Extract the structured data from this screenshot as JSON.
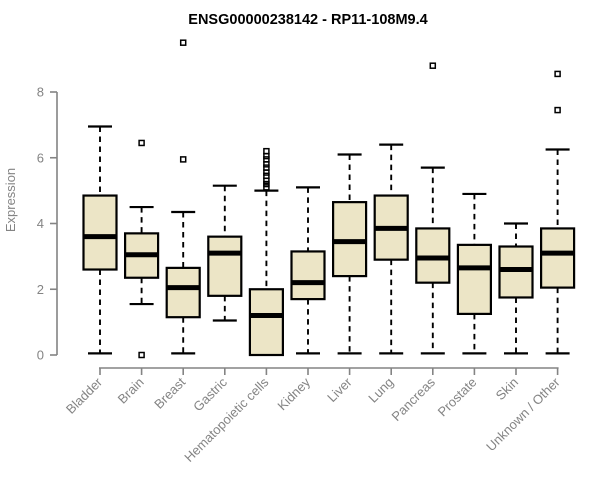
{
  "chart_data": {
    "type": "boxplot",
    "title": "ENSG00000238142 - RP11-108M9.4",
    "xlabel": "",
    "ylabel": "Expression",
    "ylim": [
      0,
      8
    ],
    "yticks": [
      0,
      2,
      4,
      6,
      8
    ],
    "grid": false,
    "legend": "none",
    "categories": [
      "Bladder",
      "Brain",
      "Breast",
      "Gastric",
      "Hematopoietic cells",
      "Kidney",
      "Liver",
      "Lung",
      "Pancreas",
      "Prostate",
      "Skin",
      "Unknown / Other"
    ],
    "series": [
      {
        "name": "Bladder",
        "low": 0.05,
        "q1": 2.6,
        "median": 3.6,
        "q3": 4.85,
        "high": 6.95,
        "outliers": []
      },
      {
        "name": "Brain",
        "low": 1.55,
        "q1": 2.35,
        "median": 3.05,
        "q3": 3.7,
        "high": 4.5,
        "outliers": [
          6.45,
          0.0
        ]
      },
      {
        "name": "Breast",
        "low": 0.05,
        "q1": 1.15,
        "median": 2.05,
        "q3": 2.65,
        "high": 4.35,
        "outliers": [
          9.5,
          5.95
        ]
      },
      {
        "name": "Gastric",
        "low": 1.05,
        "q1": 1.8,
        "median": 3.1,
        "q3": 3.6,
        "high": 5.15,
        "outliers": []
      },
      {
        "name": "Hematopoietic cells",
        "low": 0.0,
        "q1": 0.0,
        "median": 1.2,
        "q3": 2.0,
        "high": 5.0,
        "outliers": [
          5.1,
          5.2,
          5.3,
          5.45,
          5.55,
          5.7,
          5.8,
          5.95,
          6.05,
          6.2
        ]
      },
      {
        "name": "Kidney",
        "low": 0.05,
        "q1": 1.7,
        "median": 2.2,
        "q3": 3.15,
        "high": 5.1,
        "outliers": []
      },
      {
        "name": "Liver",
        "low": 0.05,
        "q1": 2.4,
        "median": 3.45,
        "q3": 4.65,
        "high": 6.1,
        "outliers": []
      },
      {
        "name": "Lung",
        "low": 0.05,
        "q1": 2.9,
        "median": 3.85,
        "q3": 4.85,
        "high": 6.4,
        "outliers": []
      },
      {
        "name": "Pancreas",
        "low": 0.05,
        "q1": 2.2,
        "median": 2.95,
        "q3": 3.85,
        "high": 5.7,
        "outliers": [
          8.8
        ]
      },
      {
        "name": "Prostate",
        "low": 0.05,
        "q1": 1.25,
        "median": 2.65,
        "q3": 3.35,
        "high": 4.9,
        "outliers": []
      },
      {
        "name": "Skin",
        "low": 0.05,
        "q1": 1.75,
        "median": 2.6,
        "q3": 3.3,
        "high": 4.0,
        "outliers": []
      },
      {
        "name": "Unknown / Other",
        "low": 0.05,
        "q1": 2.05,
        "median": 3.1,
        "q3": 3.85,
        "high": 6.25,
        "outliers": [
          8.55,
          7.45
        ]
      }
    ],
    "colors": {
      "box_fill": "#ECE5C6",
      "box_border": "#000000",
      "median": "#000000",
      "whisker": "#000000",
      "axis": "#848484",
      "tick_label": "#848484",
      "title": "#000000",
      "background": "#ffffff"
    }
  }
}
